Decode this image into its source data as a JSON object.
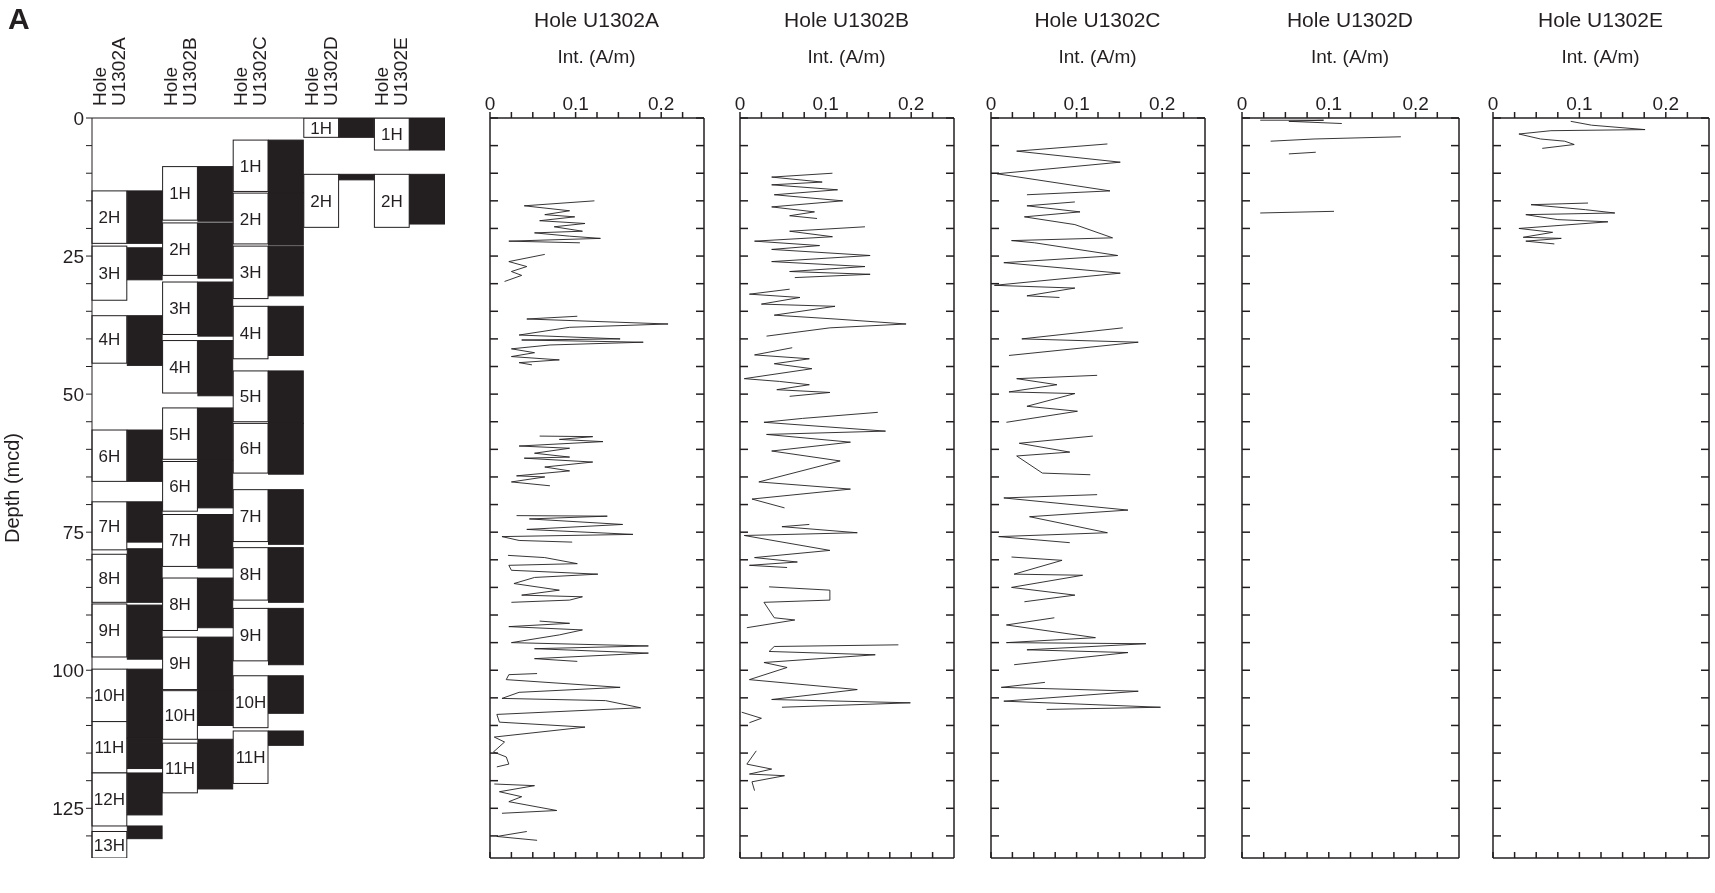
{
  "chart_data": [
    {
      "type": "bar",
      "ylabel": "Depth (mcd)",
      "annotations": [
        "A"
      ],
      "categories": [
        "Hole U1302A",
        "Hole U1302B",
        "Hole U1302C",
        "Hole U1302D",
        "Hole U1302E"
      ],
      "ylim": [
        134,
        0
      ],
      "yticks": [
        0,
        {
          "value": 5,
          "label": null
        },
        {
          "value": 10,
          "label": null
        },
        {
          "value": 15,
          "label": null
        },
        {
          "value": 20,
          "label": null
        },
        25,
        {
          "value": 30,
          "label": null
        },
        {
          "value": 35,
          "label": null
        },
        {
          "value": 40,
          "label": null
        },
        {
          "value": 45,
          "label": null
        },
        50,
        {
          "value": 55,
          "label": null
        },
        {
          "value": 60,
          "label": null
        },
        {
          "value": 65,
          "label": null
        },
        {
          "value": 70,
          "label": null
        },
        75,
        {
          "value": 80,
          "label": null
        },
        {
          "value": 85,
          "label": null
        },
        {
          "value": 90,
          "label": null
        },
        {
          "value": 95,
          "label": null
        },
        100,
        {
          "value": 105,
          "label": null
        },
        {
          "value": 110,
          "label": null
        },
        {
          "value": 115,
          "label": null
        },
        {
          "value": 120,
          "label": null
        },
        125,
        {
          "value": 130,
          "label": null
        }
      ],
      "series": [
        {
          "name": "1H",
          "color": "#ffffff",
          "base": [
            null,
            8.8,
            4,
            0,
            0
          ],
          "values": [
            null,
            9.7,
            9.3,
            3.5,
            5.8
          ]
        },
        {
          "name": "2H",
          "color": "#ffffff",
          "base": [
            13.2,
            19,
            13.6,
            10.2,
            10.2
          ],
          "values": [
            9.5,
            9.5,
            9.2,
            9.6,
            9.6
          ]
        },
        {
          "name": "3H",
          "color": "#ffffff",
          "base": [
            23.2,
            29.7,
            23.2,
            null,
            null
          ],
          "values": [
            9.8,
            9.5,
            9.5,
            null,
            null
          ]
        },
        {
          "name": "4H",
          "color": "#ffffff",
          "base": [
            35.8,
            40.3,
            34.1,
            null,
            null
          ],
          "values": [
            8.6,
            9.5,
            9.5,
            null,
            null
          ]
        },
        {
          "name": "5H",
          "color": "#ffffff",
          "base": [
            null,
            52.5,
            45.8,
            null,
            null
          ],
          "values": [
            null,
            9.3,
            9.2,
            null,
            null
          ]
        },
        {
          "name": "6H",
          "color": "#ffffff",
          "base": [
            56.5,
            62.2,
            55.3,
            null,
            null
          ],
          "values": [
            9.3,
            9,
            9,
            null,
            null
          ]
        },
        {
          "name": "7H",
          "color": "#ffffff",
          "base": [
            69.5,
            71.8,
            67.3,
            null,
            null
          ],
          "values": [
            8.7,
            9.4,
            9.4,
            null,
            null
          ]
        },
        {
          "name": "8H",
          "color": "#ffffff",
          "base": [
            79,
            83.3,
            77.8,
            null,
            null
          ],
          "values": [
            8.7,
            9.5,
            9.5,
            null,
            null
          ]
        },
        {
          "name": "9H",
          "color": "#ffffff",
          "base": [
            88,
            94,
            88.8,
            null,
            null
          ],
          "values": [
            9.6,
            9.5,
            9.5,
            null,
            null
          ]
        },
        {
          "name": "10H",
          "color": "#ffffff",
          "base": [
            99.8,
            103.7,
            101,
            null,
            null
          ],
          "values": [
            9.5,
            8.8,
            9.4,
            null,
            null
          ]
        },
        {
          "name": "11H",
          "color": "#ffffff",
          "base": [
            109.3,
            113.2,
            111,
            null,
            null
          ],
          "values": [
            9.3,
            9,
            9.5,
            null,
            null
          ]
        },
        {
          "name": "12H",
          "color": "#ffffff",
          "base": [
            118.6,
            null,
            null,
            null,
            null
          ],
          "values": [
            9.6,
            null,
            null,
            null,
            null
          ]
        },
        {
          "name": "13H",
          "color": "#ffffff",
          "base": [
            129.2,
            null,
            null,
            null,
            null
          ],
          "values": [
            4.8,
            null,
            null,
            null,
            null
          ]
        },
        {
          "color": "#231f20",
          "base": [
            null,
            8.8,
            4,
            0,
            0
          ],
          "values": [
            null,
            9.9,
            9.5,
            3.5,
            5.8
          ]
        },
        {
          "color": "#231f20",
          "base": [
            13.2,
            19,
            13.5,
            10.2,
            10.2
          ],
          "values": [
            9.5,
            10,
            9.5,
            1,
            9
          ]
        },
        {
          "color": "#231f20",
          "base": [
            23.5,
            29.7,
            23.2,
            null,
            null
          ],
          "values": [
            5.8,
            9.8,
            9,
            null,
            null
          ]
        },
        {
          "color": "#231f20",
          "base": [
            35.8,
            40.3,
            34.1,
            null,
            null
          ],
          "values": [
            9,
            10,
            8.9,
            null,
            null
          ]
        },
        {
          "color": "#231f20",
          "base": [
            null,
            52.5,
            45.8,
            null,
            null
          ],
          "values": [
            null,
            9.5,
            9.5,
            null,
            null
          ]
        },
        {
          "color": "#231f20",
          "base": [
            56.5,
            62,
            55.3,
            null,
            null
          ],
          "values": [
            9.3,
            8.6,
            9.2,
            null,
            null
          ]
        },
        {
          "color": "#231f20",
          "base": [
            69.5,
            71.8,
            67.3,
            null,
            null
          ],
          "values": [
            7.3,
            9.7,
            9.9,
            null,
            null
          ]
        },
        {
          "color": "#231f20",
          "base": [
            78,
            83.3,
            77.8,
            null,
            null
          ],
          "values": [
            9.7,
            9,
            9.9,
            null,
            null
          ]
        },
        {
          "color": "#231f20",
          "base": [
            88.2,
            94,
            88.8,
            null,
            null
          ],
          "values": [
            9.8,
            9.5,
            10.2,
            null,
            null
          ]
        },
        {
          "color": "#231f20",
          "base": [
            99.8,
            103.5,
            101,
            null,
            null
          ],
          "values": [
            12.5,
            6.5,
            6.8,
            null,
            null
          ]
        },
        {
          "color": "#231f20",
          "base": [
            112.3,
            112.5,
            111,
            null,
            null
          ],
          "values": [
            5.5,
            9,
            2.6,
            null,
            null
          ]
        },
        {
          "color": "#231f20",
          "base": [
            118.6,
            null,
            null,
            null,
            null
          ],
          "values": [
            7.6,
            null,
            null,
            null,
            null
          ]
        },
        {
          "color": "#231f20",
          "base": [
            128.2,
            null,
            null,
            null,
            null
          ],
          "values": [
            2.3,
            null,
            null,
            null,
            null
          ]
        }
      ]
    },
    {
      "type": "line",
      "title": "Hole U1302A",
      "xlabel": "Int. (A/m)",
      "tick_labels": "x",
      "xlim": [
        0,
        0.25
      ],
      "xticks": [
        0,
        {
          "value": 0.025,
          "label": null
        },
        {
          "value": 0.05,
          "label": null
        },
        {
          "value": 0.075,
          "label": null
        },
        0.1,
        {
          "value": 0.125,
          "label": null
        },
        {
          "value": 0.15,
          "label": null
        },
        {
          "value": 0.175,
          "label": null
        },
        0.2,
        {
          "value": 0.225,
          "label": null
        }
      ],
      "ylim": [
        134,
        0
      ],
      "yticks": [
        {
          "value": 0,
          "label": null
        },
        {
          "value": 5,
          "label": null
        },
        {
          "value": 10,
          "label": null
        },
        {
          "value": 15,
          "label": null
        },
        {
          "value": 20,
          "label": null
        },
        {
          "value": 25,
          "label": null
        },
        {
          "value": 30,
          "label": null
        },
        {
          "value": 35,
          "label": null
        },
        {
          "value": 40,
          "label": null
        },
        {
          "value": 45,
          "label": null
        },
        {
          "value": 50,
          "label": null
        },
        {
          "value": 55,
          "label": null
        },
        {
          "value": 60,
          "label": null
        },
        {
          "value": 65,
          "label": null
        },
        {
          "value": 70,
          "label": null
        },
        {
          "value": 75,
          "label": null
        },
        {
          "value": 80,
          "label": null
        },
        {
          "value": 85,
          "label": null
        },
        {
          "value": 90,
          "label": null
        },
        {
          "value": 95,
          "label": null
        },
        {
          "value": 100,
          "label": null
        },
        {
          "value": 105,
          "label": null
        },
        {
          "value": 110,
          "label": null
        },
        {
          "value": 115,
          "label": null
        },
        {
          "value": 120,
          "label": null
        },
        {
          "value": 125,
          "label": null
        },
        {
          "value": 130,
          "label": null
        }
      ],
      "series": [
        {
          "color": "#231f20",
          "x": [
            0.122,
            0.04,
            0.093,
            0.064,
            0.099,
            0.058,
            0.111,
            0.075,
            0.108,
            0.052,
            0.093,
            0.129,
            0.022,
            0.105,
            null,
            0.064,
            0.022,
            0.043,
            0.025,
            0.037,
            0.017,
            null,
            0.102,
            0.043,
            0.208,
            0.093,
            0.034,
            0.152,
            0.037,
            0.179,
            0.07,
            0.025,
            0.052,
            0.025,
            0.081,
            0.034,
            0.049,
            null,
            0.058,
            0.12,
            0.081,
            0.132,
            0.034,
            0.093,
            0.052,
            0.093,
            0.04,
            0.12,
            0.064,
            0.093,
            0.031,
            0.064,
            0.025,
            0.07,
            null,
            0.031,
            0.137,
            0.046,
            0.155,
            0.043,
            0.167,
            0.014,
            0.034,
            0.096,
            null,
            0.021,
            0.064,
            0.102,
            0.022,
            0.025,
            0.126,
            0.052,
            0.028,
            0.081,
            0.037,
            0.108,
            0.093,
            0.025,
            null,
            0.058,
            0.093,
            0.022,
            0.108,
            0.081,
            0.025,
            0.185,
            0.052,
            0.185,
            0.052,
            0.102,
            null,
            0.055,
            0.022,
            0.019,
            0.152,
            0.034,
            0.014,
            0.135,
            0.176,
            0.008,
            0.011,
            0.111,
            0.005,
            0.017,
            0.004,
            0.019,
            0.022,
            0.008,
            null,
            0.005,
            0.052,
            0.011,
            0.037,
            0.022,
            0.078,
            0.014,
            null,
            0.043,
            0.008,
            0.055
          ],
          "values": [
            15,
            15.9,
            16.8,
            17.5,
            17.9,
            18.6,
            19.1,
            19.7,
            20.5,
            20.8,
            21.4,
            21.8,
            22.3,
            22.6,
            null,
            24.7,
            26,
            26.9,
            27.8,
            28.5,
            29.6,
            null,
            35.9,
            36.4,
            37.3,
            37.9,
            39.3,
            40,
            40.2,
            40.6,
            41.1,
            41.8,
            42.5,
            43.2,
            43.8,
            44.3,
            44.7,
            null,
            57.6,
            57.7,
            58.2,
            58.6,
            59.4,
            59.8,
            60.7,
            61.4,
            61.6,
            62.3,
            63.2,
            63.9,
            64.8,
            65,
            65.9,
            66.6,
            null,
            72,
            72.1,
            72.6,
            73.6,
            74.5,
            75.4,
            75.8,
            76.5,
            76.8,
            null,
            79.2,
            79.6,
            80.7,
            81,
            81.9,
            82.6,
            83.2,
            84.3,
            85.5,
            86.4,
            86.7,
            87.3,
            87.7,
            null,
            91.1,
            91.5,
            92.1,
            92.7,
            93.6,
            95,
            95.6,
            96.1,
            96.9,
            97.9,
            98.4,
            null,
            100.6,
            100.8,
            101.7,
            103.1,
            104,
            105.1,
            105.5,
            106.8,
            108,
            109.4,
            110.3,
            112.1,
            113,
            114.8,
            115.7,
            117,
            117.5,
            null,
            120.6,
            120.9,
            122,
            122.9,
            123.8,
            125.4,
            125.9,
            null,
            129.2,
            130.1,
            130.8
          ]
        }
      ]
    },
    {
      "type": "line",
      "title": "Hole U1302B",
      "xlabel": "Int. (A/m)",
      "tick_labels": "x",
      "xlim": [
        0,
        0.25
      ],
      "xticks": [
        0,
        {
          "value": 0.025,
          "label": null
        },
        {
          "value": 0.05,
          "label": null
        },
        {
          "value": 0.075,
          "label": null
        },
        0.1,
        {
          "value": 0.125,
          "label": null
        },
        {
          "value": 0.15,
          "label": null
        },
        {
          "value": 0.175,
          "label": null
        },
        0.2,
        {
          "value": 0.225,
          "label": null
        }
      ],
      "ylim": [
        134,
        0
      ],
      "yticks": [
        {
          "value": 0,
          "label": null
        },
        {
          "value": 5,
          "label": null
        },
        {
          "value": 10,
          "label": null
        },
        {
          "value": 15,
          "label": null
        },
        {
          "value": 20,
          "label": null
        },
        {
          "value": 25,
          "label": null
        },
        {
          "value": 30,
          "label": null
        },
        {
          "value": 35,
          "label": null
        },
        {
          "value": 40,
          "label": null
        },
        {
          "value": 45,
          "label": null
        },
        {
          "value": 50,
          "label": null
        },
        {
          "value": 55,
          "label": null
        },
        {
          "value": 60,
          "label": null
        },
        {
          "value": 65,
          "label": null
        },
        {
          "value": 70,
          "label": null
        },
        {
          "value": 75,
          "label": null
        },
        {
          "value": 80,
          "label": null
        },
        {
          "value": 85,
          "label": null
        },
        {
          "value": 90,
          "label": null
        },
        {
          "value": 95,
          "label": null
        },
        {
          "value": 100,
          "label": null
        },
        {
          "value": 105,
          "label": null
        },
        {
          "value": 110,
          "label": null
        },
        {
          "value": 115,
          "label": null
        },
        {
          "value": 120,
          "label": null
        },
        {
          "value": 125,
          "label": null
        },
        {
          "value": 130,
          "label": null
        }
      ],
      "series": [
        {
          "color": "#231f20",
          "x": [
            0.108,
            0.037,
            0.096,
            0.037,
            0.114,
            0.04,
            0.12,
            0.037,
            0.087,
            0.058,
            0.09,
            null,
            0.146,
            0.058,
            0.108,
            0.017,
            0.093,
            0.037,
            0.152,
            0.037,
            0.146,
            0.058,
            0.152,
            0.064,
            null,
            0.058,
            0.011,
            0.07,
            0.025,
            0.111,
            0.04,
            0.111,
            0.194,
            0.105,
            0.031,
            null,
            0.061,
            0.017,
            0.081,
            0.04,
            0.084,
            0.005,
            0.046,
            0.081,
            0.043,
            0.105,
            0.058,
            null,
            0.161,
            0.073,
            0.028,
            0.17,
            0.031,
            0.129,
            0.037,
            0.117,
            0.022,
            0.129,
            0.014,
            0.052,
            null,
            0.081,
            0.049,
            0.137,
            0.005,
            0.105,
            0.017,
            0.067,
            0.011,
            0.055,
            null,
            0.034,
            0.105,
            0.105,
            0.028,
            0.04,
            0.064,
            0.008,
            null,
            0.185,
            0.04,
            0.034,
            0.158,
            0.028,
            0.055,
            0.011,
            0.137,
            0.037,
            0.199,
            0.049,
            null,
            0.002,
            0.025,
            0.011,
            null,
            0.019,
            0.008,
            0.037,
            0.011,
            0.052,
            0.014,
            0.017
          ],
          "values": [
            10,
            10.7,
            11.6,
            12.1,
            13,
            13.9,
            15,
            16.1,
            17,
            17.7,
            18.2,
            null,
            19.7,
            20.5,
            21.5,
            22.3,
            23.1,
            23.8,
            24.9,
            26,
            26.9,
            27.8,
            28.3,
            28.9,
            null,
            31,
            31.9,
            32.5,
            33.7,
            34.1,
            35.7,
            36.4,
            37.3,
            38,
            39.5,
            null,
            41.6,
            42.9,
            43.6,
            44.5,
            45.4,
            47.2,
            47.7,
            48.3,
            49.2,
            49.7,
            50.4,
            null,
            53.3,
            54.4,
            55.1,
            56.7,
            57.3,
            58.7,
            60.3,
            62.1,
            65.9,
            67.2,
            69,
            70.6,
            null,
            73.6,
            74,
            75.1,
            75.6,
            78.3,
            79.6,
            80.4,
            81,
            81.4,
            null,
            84.9,
            85.5,
            87.3,
            87.7,
            90.5,
            90.9,
            92.3,
            null,
            95.4,
            95.7,
            96.6,
            97.2,
            98.6,
            99.5,
            101.7,
            103.5,
            105.3,
            105.9,
            106.7,
            null,
            107.6,
            108.7,
            109.5,
            null,
            114.6,
            117,
            117.9,
            118.8,
            119.1,
            120.2,
            121.8
          ]
        }
      ]
    },
    {
      "type": "line",
      "title": "Hole U1302C",
      "xlabel": "Int. (A/m)",
      "tick_labels": "x",
      "xlim": [
        0,
        0.25
      ],
      "xticks": [
        0,
        {
          "value": 0.025,
          "label": null
        },
        {
          "value": 0.05,
          "label": null
        },
        {
          "value": 0.075,
          "label": null
        },
        0.1,
        {
          "value": 0.125,
          "label": null
        },
        {
          "value": 0.15,
          "label": null
        },
        {
          "value": 0.175,
          "label": null
        },
        0.2,
        {
          "value": 0.225,
          "label": null
        }
      ],
      "ylim": [
        134,
        0
      ],
      "yticks": [
        {
          "value": 0,
          "label": null
        },
        {
          "value": 5,
          "label": null
        },
        {
          "value": 10,
          "label": null
        },
        {
          "value": 15,
          "label": null
        },
        {
          "value": 20,
          "label": null
        },
        {
          "value": 25,
          "label": null
        },
        {
          "value": 30,
          "label": null
        },
        {
          "value": 35,
          "label": null
        },
        {
          "value": 40,
          "label": null
        },
        {
          "value": 45,
          "label": null
        },
        {
          "value": 50,
          "label": null
        },
        {
          "value": 55,
          "label": null
        },
        {
          "value": 60,
          "label": null
        },
        {
          "value": 65,
          "label": null
        },
        {
          "value": 70,
          "label": null
        },
        {
          "value": 75,
          "label": null
        },
        {
          "value": 80,
          "label": null
        },
        {
          "value": 85,
          "label": null
        },
        {
          "value": 90,
          "label": null
        },
        {
          "value": 95,
          "label": null
        },
        {
          "value": 100,
          "label": null
        },
        {
          "value": 105,
          "label": null
        },
        {
          "value": 110,
          "label": null
        },
        {
          "value": 115,
          "label": null
        },
        {
          "value": 120,
          "label": null
        },
        {
          "value": 125,
          "label": null
        },
        {
          "value": 130,
          "label": null
        }
      ],
      "series": [
        {
          "color": "#231f20",
          "x": [
            0.136,
            0.03,
            0.151,
            0.007,
            0.139,
            0.042,
            null,
            0.098,
            0.042,
            0.104,
            0.039,
            0.098,
            0.142,
            0.024,
            0.051,
            0.148,
            0.015,
            0.151,
            0.004,
            0.098,
            0.042,
            0.08,
            null,
            0.154,
            0.036,
            0.172,
            0.021,
            null,
            0.124,
            0.03,
            0.077,
            0.021,
            0.098,
            0.042,
            0.101,
            0.018,
            null,
            0.119,
            0.033,
            0.092,
            0.03,
            0.06,
            0.116,
            null,
            0.124,
            0.015,
            0.16,
            0.045,
            0.136,
            0.009,
            0.092,
            null,
            0.024,
            0.083,
            0.027,
            0.107,
            0.024,
            0.098,
            0.039,
            null,
            0.074,
            0.018,
            0.122,
            0.018,
            0.181,
            0.042,
            0.16,
            0.027,
            null,
            0.063,
            0.012,
            0.172,
            0.015,
            0.198,
            0.065
          ],
          "values": [
            4.7,
            6,
            8,
            10.1,
            13.2,
            13.9,
            null,
            15.2,
            15.9,
            17,
            17.9,
            19.3,
            21.7,
            22.2,
            22.6,
            24.9,
            26.2,
            28.1,
            30.3,
            30.8,
            32.2,
            32.5,
            null,
            38,
            40,
            40.6,
            43,
            null,
            46.6,
            47.2,
            48.3,
            49.6,
            49.9,
            52.2,
            53.1,
            55.1,
            null,
            57.6,
            58.9,
            60.5,
            61.2,
            64.3,
            64.6,
            null,
            68.2,
            68.8,
            71,
            72.2,
            75.1,
            75.8,
            76.9,
            null,
            79.5,
            80.1,
            82.6,
            82.8,
            85,
            86.4,
            87.6,
            null,
            90.5,
            91.8,
            94.1,
            95,
            95.2,
            96.3,
            96.8,
            99,
            null,
            102.2,
            103.1,
            103.8,
            105.6,
            106.7,
            107.1
          ]
        }
      ]
    },
    {
      "type": "line",
      "title": "Hole U1302D",
      "xlabel": "Int. (A/m)",
      "tick_labels": "x",
      "xlim": [
        0,
        0.25
      ],
      "xticks": [
        0,
        {
          "value": 0.025,
          "label": null
        },
        {
          "value": 0.05,
          "label": null
        },
        {
          "value": 0.075,
          "label": null
        },
        0.1,
        {
          "value": 0.125,
          "label": null
        },
        {
          "value": 0.15,
          "label": null
        },
        {
          "value": 0.175,
          "label": null
        },
        0.2,
        {
          "value": 0.225,
          "label": null
        }
      ],
      "ylim": [
        134,
        0
      ],
      "yticks": [
        {
          "value": 0,
          "label": null
        },
        {
          "value": 5,
          "label": null
        },
        {
          "value": 10,
          "label": null
        },
        {
          "value": 15,
          "label": null
        },
        {
          "value": 20,
          "label": null
        },
        {
          "value": 25,
          "label": null
        },
        {
          "value": 30,
          "label": null
        },
        {
          "value": 35,
          "label": null
        },
        {
          "value": 40,
          "label": null
        },
        {
          "value": 45,
          "label": null
        },
        {
          "value": 50,
          "label": null
        },
        {
          "value": 55,
          "label": null
        },
        {
          "value": 60,
          "label": null
        },
        {
          "value": 65,
          "label": null
        },
        {
          "value": 70,
          "label": null
        },
        {
          "value": 75,
          "label": null
        },
        {
          "value": 80,
          "label": null
        },
        {
          "value": 85,
          "label": null
        },
        {
          "value": 90,
          "label": null
        },
        {
          "value": 95,
          "label": null
        },
        {
          "value": 100,
          "label": null
        },
        {
          "value": 105,
          "label": null
        },
        {
          "value": 110,
          "label": null
        },
        {
          "value": 115,
          "label": null
        },
        {
          "value": 120,
          "label": null
        },
        {
          "value": 125,
          "label": null
        },
        {
          "value": 130,
          "label": null
        }
      ],
      "series": [
        {
          "color": "#231f20",
          "x": [
            0.021,
            0.094,
            0.054,
            0.115,
            null,
            0.183,
            0.083,
            0.033,
            null,
            0.085,
            0.054,
            null,
            0.106,
            0.021
          ],
          "values": [
            0.4,
            0.4,
            0.6,
            1,
            null,
            3.4,
            3.8,
            4.2,
            null,
            6.2,
            6.5,
            null,
            16.9,
            17.2
          ]
        }
      ]
    },
    {
      "type": "line",
      "title": "Hole U1302E",
      "xlabel": "Int. (A/m)",
      "tick_labels": "x",
      "xlim": [
        0,
        0.25
      ],
      "xticks": [
        0,
        {
          "value": 0.025,
          "label": null
        },
        {
          "value": 0.05,
          "label": null
        },
        {
          "value": 0.075,
          "label": null
        },
        0.1,
        {
          "value": 0.125,
          "label": null
        },
        {
          "value": 0.15,
          "label": null
        },
        {
          "value": 0.175,
          "label": null
        },
        0.2,
        {
          "value": 0.225,
          "label": null
        }
      ],
      "ylim": [
        134,
        0
      ],
      "yticks": [
        {
          "value": 0,
          "label": null
        },
        {
          "value": 5,
          "label": null
        },
        {
          "value": 10,
          "label": null
        },
        {
          "value": 15,
          "label": null
        },
        {
          "value": 20,
          "label": null
        },
        {
          "value": 25,
          "label": null
        },
        {
          "value": 30,
          "label": null
        },
        {
          "value": 35,
          "label": null
        },
        {
          "value": 40,
          "label": null
        },
        {
          "value": 45,
          "label": null
        },
        {
          "value": 50,
          "label": null
        },
        {
          "value": 55,
          "label": null
        },
        {
          "value": 60,
          "label": null
        },
        {
          "value": 65,
          "label": null
        },
        {
          "value": 70,
          "label": null
        },
        {
          "value": 75,
          "label": null
        },
        {
          "value": 80,
          "label": null
        },
        {
          "value": 85,
          "label": null
        },
        {
          "value": 90,
          "label": null
        },
        {
          "value": 95,
          "label": null
        },
        {
          "value": 100,
          "label": null
        },
        {
          "value": 105,
          "label": null
        },
        {
          "value": 110,
          "label": null
        },
        {
          "value": 115,
          "label": null
        },
        {
          "value": 120,
          "label": null
        },
        {
          "value": 125,
          "label": null
        },
        {
          "value": 130,
          "label": null
        }
      ],
      "series": [
        {
          "color": "#231f20",
          "x": [
            0.09,
            0.114,
            0.176,
            0.067,
            0.03,
            0.055,
            0.083,
            0.094,
            0.057,
            null,
            0.11,
            0.044,
            0.107,
            0.141,
            0.038,
            0.075,
            0.133,
            0.03,
            0.069,
            0.035,
            0.079,
            0.038,
            0.071
          ],
          "values": [
            0.6,
            1.3,
            2.1,
            2.3,
            2.9,
            3.8,
            4.2,
            4.8,
            5.5,
            null,
            15.4,
            15.7,
            16.6,
            17.2,
            17.5,
            18.4,
            18.8,
            20,
            20.7,
            21.6,
            21.8,
            22.3,
            22.8
          ]
        }
      ]
    }
  ]
}
